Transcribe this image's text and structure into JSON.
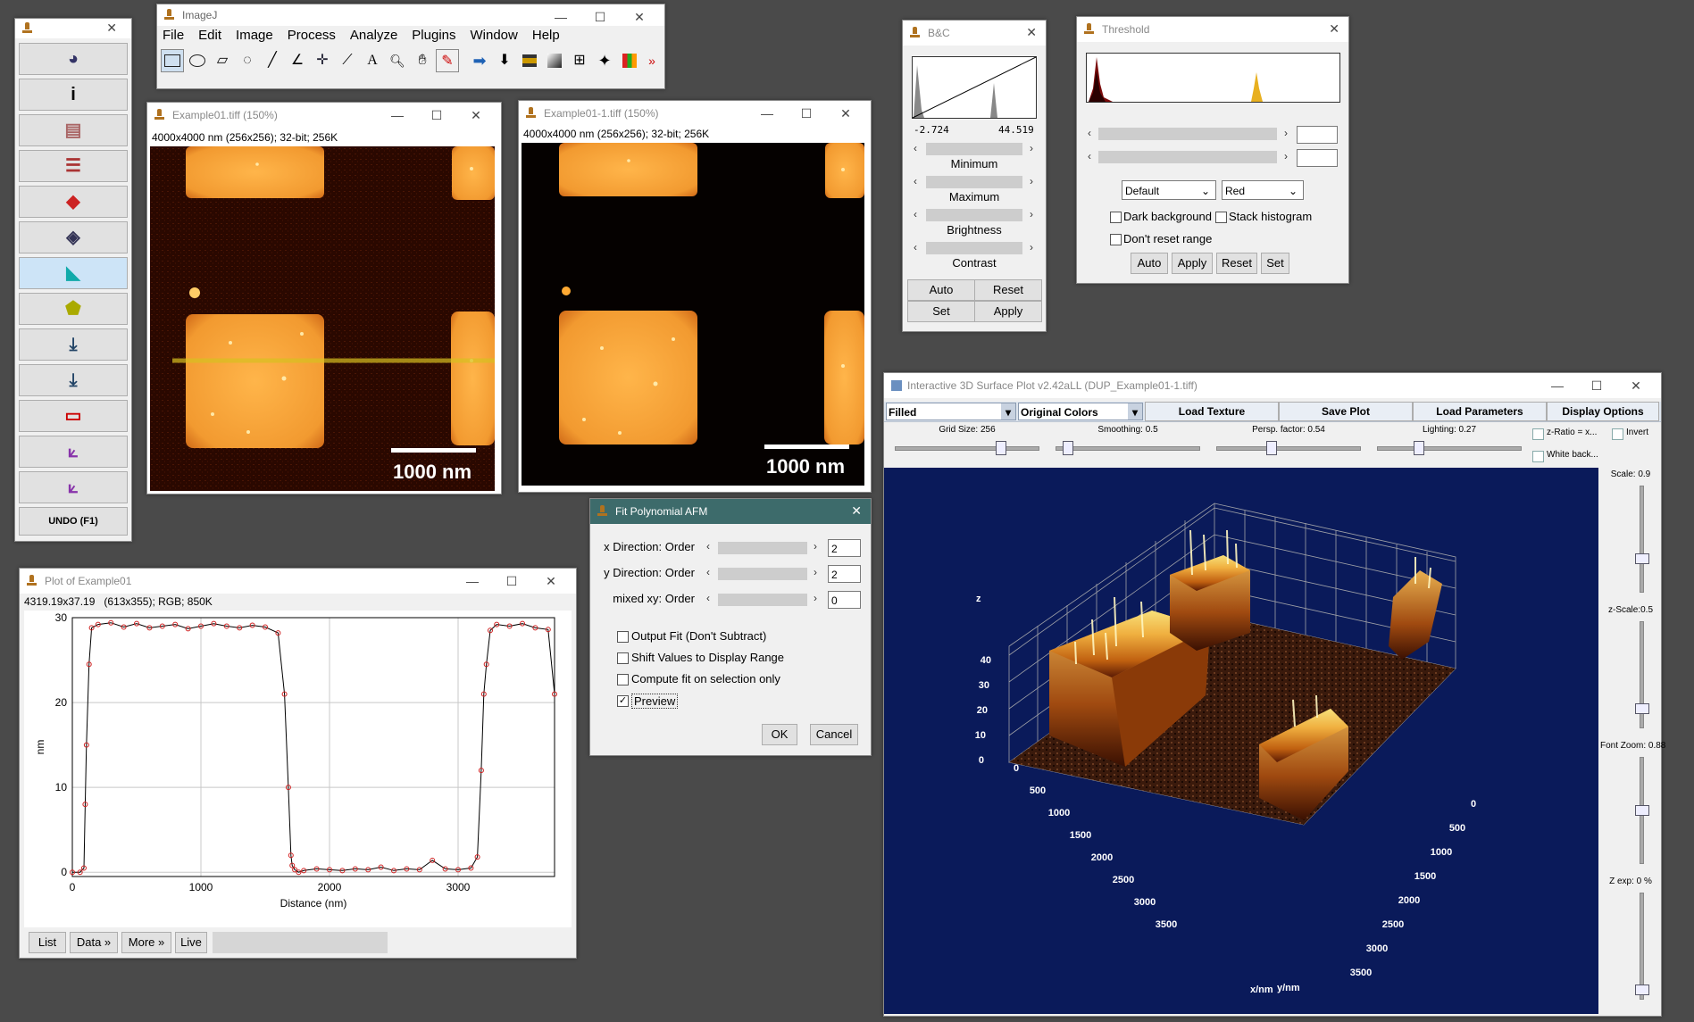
{
  "toolbar_window": {
    "buttons": [
      "rainbow-icon",
      "info-icon",
      "brightness-icon",
      "gradient-icon",
      "eraser-icon",
      "layers-icon",
      "gem-icon",
      "blob-icon",
      "arrow-down-icon",
      "arrow-down-wave-icon",
      "ruler-icon",
      "axes-icon",
      "axes2-icon"
    ],
    "undo_label": "UNDO (F1)"
  },
  "imagej": {
    "title": "ImageJ",
    "menu": [
      "File",
      "Edit",
      "Image",
      "Process",
      "Analyze",
      "Plugins",
      "Window",
      "Help"
    ]
  },
  "example01": {
    "title": "Example01.tiff (150%)",
    "info": "4000x4000 nm (256x256); 32-bit; 256K",
    "scalebar": "1000 nm"
  },
  "example01_1": {
    "title": "Example01-1.tiff (150%)",
    "info": "4000x4000 nm (256x256); 32-bit; 256K",
    "scalebar": "1000 nm"
  },
  "bc": {
    "title": "B&C",
    "min_value": "-2.724",
    "max_value": "44.519",
    "labels": [
      "Minimum",
      "Maximum",
      "Brightness",
      "Contrast"
    ],
    "buttons": [
      "Auto",
      "Reset",
      "Set",
      "Apply"
    ]
  },
  "threshold": {
    "title": "Threshold",
    "method": "Default",
    "mode": "Red",
    "dark_background": "Dark background",
    "stack_histogram": "Stack histogram",
    "dont_reset": "Don't reset range",
    "buttons": [
      "Auto",
      "Apply",
      "Reset",
      "Set"
    ]
  },
  "plot": {
    "title": "Plot of Example01",
    "info": "4319.19x37.19   (613x355); RGB; 850K",
    "buttons": [
      "List",
      "Data »",
      "More »",
      "Live"
    ]
  },
  "chart_data": {
    "type": "line",
    "xlabel": "Distance (nm)",
    "ylabel": "nm",
    "xlim": [
      0,
      3750
    ],
    "ylim": [
      -0.5,
      30
    ],
    "xticks": [
      0,
      1000,
      2000,
      3000
    ],
    "yticks": [
      0,
      10,
      20,
      30
    ],
    "grid": true,
    "series": [
      {
        "x": [
          0,
          60,
          90,
          100,
          110,
          130,
          150,
          200,
          300,
          400,
          500,
          600,
          700,
          800,
          900,
          1000,
          1100,
          1200,
          1300,
          1400,
          1500,
          1600,
          1650,
          1680,
          1700,
          1710,
          1730,
          1760,
          1800,
          1900,
          2000,
          2100,
          2200,
          2300,
          2400,
          2500,
          2600,
          2700,
          2800,
          2900,
          3000,
          3100,
          3150,
          3180,
          3200,
          3220,
          3250,
          3300,
          3400,
          3500,
          3600,
          3700,
          3750
        ],
        "y": [
          0,
          0,
          0.5,
          8,
          15,
          24.5,
          28.8,
          29.2,
          29.4,
          28.9,
          29.3,
          28.8,
          29.0,
          29.2,
          28.7,
          29.0,
          29.3,
          29.0,
          28.8,
          29.1,
          28.9,
          28.2,
          21,
          10,
          2,
          0.8,
          0.3,
          0,
          0.2,
          0.4,
          0.3,
          0.2,
          0.4,
          0.3,
          0.6,
          0.2,
          0.4,
          0.3,
          1.4,
          0.4,
          0.3,
          0.5,
          1.8,
          12,
          21,
          24.5,
          28.5,
          29.2,
          29.0,
          29.3,
          28.8,
          28.6,
          21
        ]
      }
    ]
  },
  "fit": {
    "title": "Fit Polynomial AFM",
    "rows": [
      {
        "label": "x Direction: Order",
        "value": "2"
      },
      {
        "label": "y Direction: Order",
        "value": "2"
      },
      {
        "label": "mixed xy: Order",
        "value": "0"
      }
    ],
    "checks": [
      {
        "label": "Output Fit (Don't Subtract)",
        "checked": false
      },
      {
        "label": "Shift Values to Display Range",
        "checked": false
      },
      {
        "label": "Compute fit on selection only",
        "checked": false
      },
      {
        "label": "Preview",
        "checked": true
      }
    ],
    "ok": "OK",
    "cancel": "Cancel"
  },
  "surface": {
    "title": "Interactive 3D Surface Plot v2.42aLL  (DUP_Example01-1.tiff)",
    "mode": "Filled",
    "colors": "Original Colors",
    "buttons": [
      "Load Texture",
      "Save Plot",
      "Load Parameters",
      "Display Options"
    ],
    "sliders": [
      {
        "label": "Grid Size: 256"
      },
      {
        "label": "Smoothing: 0.5"
      },
      {
        "label": "Persp. factor: 0.54"
      },
      {
        "label": "Lighting: 0.27"
      }
    ],
    "zratio": "z-Ratio = x...",
    "invert": "Invert",
    "white_back": "White back...",
    "side_labels": [
      "Scale: 0.9",
      "z-Scale:0.5",
      "Font Zoom: 0.88",
      "Z exp: 0 %"
    ],
    "axis_z_label": "z",
    "z_ticks": [
      "40",
      "30",
      "20",
      "10",
      "0"
    ],
    "x_ticks": [
      "0",
      "500",
      "1000",
      "1500",
      "2000",
      "2500",
      "3000",
      "3500"
    ],
    "y_ticks": [
      "0",
      "500",
      "1000",
      "1500",
      "2000",
      "2500",
      "3000",
      "3500"
    ],
    "x_label": "x/nm",
    "y_label": "y/nm"
  }
}
